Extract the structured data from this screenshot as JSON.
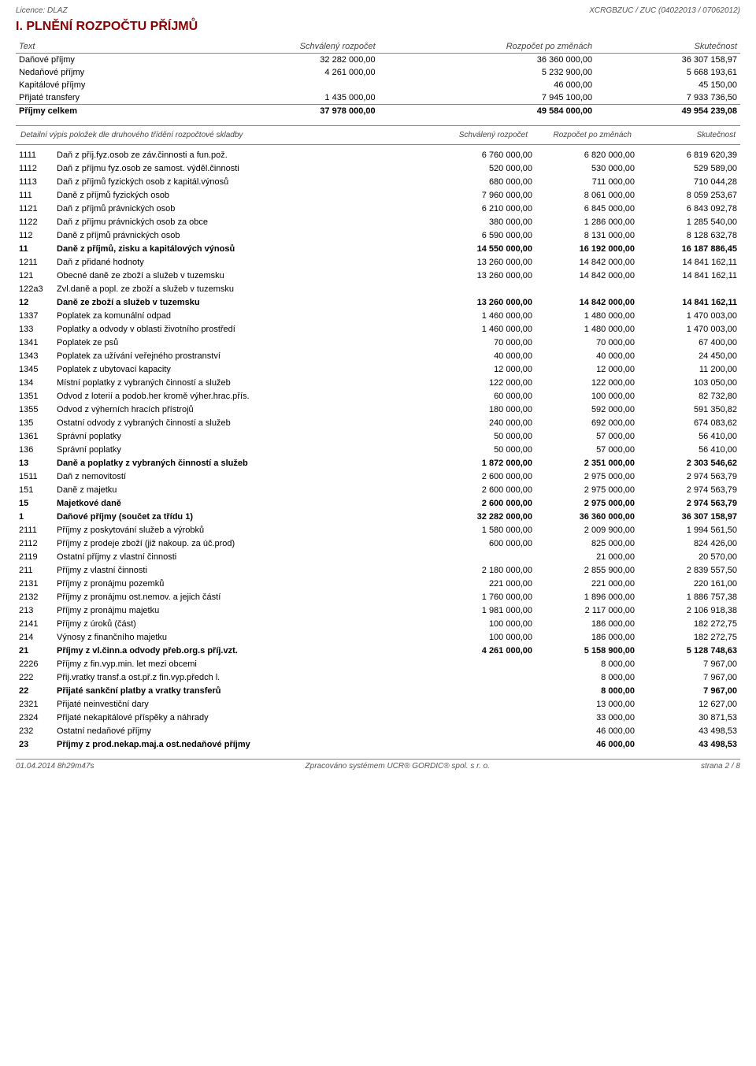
{
  "header": {
    "left": "Licence: DLAZ",
    "right": "XCRGBZUC / ZUC  (04022013 / 07062012)"
  },
  "section_title": "I. PLNĚNÍ ROZPOČTU PŘÍJMŮ",
  "intro": {
    "col_headers": [
      "Text",
      "Schválený rozpočet",
      "Rozpočet po změnách",
      "Skutečnost"
    ],
    "rows": [
      {
        "label": "Daňové příjmy",
        "c1": "32 282 000,00",
        "c2": "36 360 000,00",
        "c3": "36 307 158,97",
        "bold": false
      },
      {
        "label": "Nedaňové příjmy",
        "c1": "4 261 000,00",
        "c2": "5 232 900,00",
        "c3": "5 668 193,61",
        "bold": false
      },
      {
        "label": "Kapitálové příjmy",
        "c1": "",
        "c2": "46 000,00",
        "c3": "45 150,00",
        "bold": false
      },
      {
        "label": "Přijaté transfery",
        "c1": "1 435 000,00",
        "c2": "7 945 100,00",
        "c3": "7 933 736,50",
        "bold": false
      },
      {
        "label": "Příjmy celkem",
        "c1": "37 978 000,00",
        "c2": "49 584 000,00",
        "c3": "49 954 239,08",
        "bold": true
      }
    ]
  },
  "detail_header": [
    "Detailní výpis položek dle druhového třídění rozpočtové skladby",
    "Schválený rozpočet",
    "Rozpočet po změnách",
    "Skutečnost"
  ],
  "rows": [
    {
      "code": "1111",
      "label": "Daň z příj.fyz.osob ze záv.činnosti a fun.pož.",
      "c1": "6 760 000,00",
      "c2": "6 820 000,00",
      "c3": "6 819 620,39",
      "bold": false
    },
    {
      "code": "1112",
      "label": "Daň z příjmu fyz.osob ze samost. výděl.činnosti",
      "c1": "520 000,00",
      "c2": "530 000,00",
      "c3": "529 589,00",
      "bold": false
    },
    {
      "code": "1113",
      "label": "Daň z příjmů fyzických osob z kapitál.výnosů",
      "c1": "680 000,00",
      "c2": "711 000,00",
      "c3": "710 044,28",
      "bold": false
    },
    {
      "code": "111",
      "label": "Daně z příjmů fyzických osob",
      "c1": "7 960 000,00",
      "c2": "8 061 000,00",
      "c3": "8 059 253,67",
      "bold": false
    },
    {
      "code": "1121",
      "label": "Daň z příjmů právnických osob",
      "c1": "6 210 000,00",
      "c2": "6 845 000,00",
      "c3": "6 843 092,78",
      "bold": false
    },
    {
      "code": "1122",
      "label": "Daň z příjmu právnických osob za obce",
      "c1": "380 000,00",
      "c2": "1 286 000,00",
      "c3": "1 285 540,00",
      "bold": false
    },
    {
      "code": "112",
      "label": "Daně z příjmů právnických osob",
      "c1": "6 590 000,00",
      "c2": "8 131 000,00",
      "c3": "8 128 632,78",
      "bold": false
    },
    {
      "code": "11",
      "label": "Daně z příjmů, zisku a kapitálových výnosů",
      "c1": "14 550 000,00",
      "c2": "16 192 000,00",
      "c3": "16 187 886,45",
      "bold": true
    },
    {
      "code": "1211",
      "label": "Daň z přidané hodnoty",
      "c1": "13 260 000,00",
      "c2": "14 842 000,00",
      "c3": "14 841 162,11",
      "bold": false
    },
    {
      "code": "121",
      "label": "Obecné daně ze zboží a služeb v tuzemsku",
      "c1": "13 260 000,00",
      "c2": "14 842 000,00",
      "c3": "14 841 162,11",
      "bold": false
    },
    {
      "code": "122a3",
      "label": "Zvl.daně a popl. ze zboží a služeb v tuzemsku",
      "c1": "",
      "c2": "",
      "c3": "",
      "bold": false
    },
    {
      "code": "12",
      "label": "Daně ze zboží a služeb v tuzemsku",
      "c1": "13 260 000,00",
      "c2": "14 842 000,00",
      "c3": "14 841 162,11",
      "bold": true
    },
    {
      "code": "1337",
      "label": "Poplatek za komunální odpad",
      "c1": "1 460 000,00",
      "c2": "1 480 000,00",
      "c3": "1 470 003,00",
      "bold": false
    },
    {
      "code": "133",
      "label": "Poplatky a odvody v oblasti životního prostředí",
      "c1": "1 460 000,00",
      "c2": "1 480 000,00",
      "c3": "1 470 003,00",
      "bold": false
    },
    {
      "code": "1341",
      "label": "Poplatek ze psů",
      "c1": "70 000,00",
      "c2": "70 000,00",
      "c3": "67 400,00",
      "bold": false
    },
    {
      "code": "1343",
      "label": "Poplatek za užívání veřejného prostranství",
      "c1": "40 000,00",
      "c2": "40 000,00",
      "c3": "24 450,00",
      "bold": false
    },
    {
      "code": "1345",
      "label": "Poplatek z ubytovací kapacity",
      "c1": "12 000,00",
      "c2": "12 000,00",
      "c3": "11 200,00",
      "bold": false
    },
    {
      "code": "134",
      "label": "Místní poplatky z vybraných činností a služeb",
      "c1": "122 000,00",
      "c2": "122 000,00",
      "c3": "103 050,00",
      "bold": false
    },
    {
      "code": "1351",
      "label": "Odvod z loterií a podob.her kromě výher.hrac.přís.",
      "c1": "60 000,00",
      "c2": "100 000,00",
      "c3": "82 732,80",
      "bold": false
    },
    {
      "code": "1355",
      "label": "Odvod z výherních hracích přístrojů",
      "c1": "180 000,00",
      "c2": "592 000,00",
      "c3": "591 350,82",
      "bold": false
    },
    {
      "code": "135",
      "label": "Ostatní odvody z vybraných činností a služeb",
      "c1": "240 000,00",
      "c2": "692 000,00",
      "c3": "674 083,62",
      "bold": false
    },
    {
      "code": "1361",
      "label": "Správní poplatky",
      "c1": "50 000,00",
      "c2": "57 000,00",
      "c3": "56 410,00",
      "bold": false
    },
    {
      "code": "136",
      "label": "Správní poplatky",
      "c1": "50 000,00",
      "c2": "57 000,00",
      "c3": "56 410,00",
      "bold": false
    },
    {
      "code": "13",
      "label": "Daně a poplatky z vybraných činností a služeb",
      "c1": "1 872 000,00",
      "c2": "2 351 000,00",
      "c3": "2 303 546,62",
      "bold": true
    },
    {
      "code": "1511",
      "label": "Daň z nemovitostí",
      "c1": "2 600 000,00",
      "c2": "2 975 000,00",
      "c3": "2 974 563,79",
      "bold": false
    },
    {
      "code": "151",
      "label": "Daně z majetku",
      "c1": "2 600 000,00",
      "c2": "2 975 000,00",
      "c3": "2 974 563,79",
      "bold": false
    },
    {
      "code": "15",
      "label": "Majetkové daně",
      "c1": "2 600 000,00",
      "c2": "2 975 000,00",
      "c3": "2 974 563,79",
      "bold": true
    },
    {
      "code": "1",
      "label": "Daňové příjmy (součet za třídu 1)",
      "c1": "32 282 000,00",
      "c2": "36 360 000,00",
      "c3": "36 307 158,97",
      "bold": true
    },
    {
      "code": "2111",
      "label": "Příjmy z poskytování služeb a výrobků",
      "c1": "1 580 000,00",
      "c2": "2 009 900,00",
      "c3": "1 994 561,50",
      "bold": false
    },
    {
      "code": "2112",
      "label": "Příjmy z prodeje zboží (již nakoup. za úč.prod)",
      "c1": "600 000,00",
      "c2": "825 000,00",
      "c3": "824 426,00",
      "bold": false
    },
    {
      "code": "2119",
      "label": "Ostatní příjmy z vlastní činnosti",
      "c1": "",
      "c2": "21 000,00",
      "c3": "20 570,00",
      "bold": false
    },
    {
      "code": "211",
      "label": "Příjmy z vlastní činnosti",
      "c1": "2 180 000,00",
      "c2": "2 855 900,00",
      "c3": "2 839 557,50",
      "bold": false
    },
    {
      "code": "2131",
      "label": "Příjmy z pronájmu pozemků",
      "c1": "221 000,00",
      "c2": "221 000,00",
      "c3": "220 161,00",
      "bold": false
    },
    {
      "code": "2132",
      "label": "Příjmy z pronájmu ost.nemov. a jejich částí",
      "c1": "1 760 000,00",
      "c2": "1 896 000,00",
      "c3": "1 886 757,38",
      "bold": false
    },
    {
      "code": "213",
      "label": "Příjmy z pronájmu majetku",
      "c1": "1 981 000,00",
      "c2": "2 117 000,00",
      "c3": "2 106 918,38",
      "bold": false
    },
    {
      "code": "2141",
      "label": "Příjmy z úroků (část)",
      "c1": "100 000,00",
      "c2": "186 000,00",
      "c3": "182 272,75",
      "bold": false
    },
    {
      "code": "214",
      "label": "Výnosy z finančního majetku",
      "c1": "100 000,00",
      "c2": "186 000,00",
      "c3": "182 272,75",
      "bold": false
    },
    {
      "code": "21",
      "label": "Příjmy z vl.činn.a odvody přeb.org.s příj.vzt.",
      "c1": "4 261 000,00",
      "c2": "5 158 900,00",
      "c3": "5 128 748,63",
      "bold": true
    },
    {
      "code": "2226",
      "label": "Příjmy z fin.vyp.min. let mezi obcemi",
      "c1": "",
      "c2": "8 000,00",
      "c3": "7 967,00",
      "bold": false
    },
    {
      "code": "222",
      "label": "Přij.vratky transf.a ost.př.z fin.vyp.předch l.",
      "c1": "",
      "c2": "8 000,00",
      "c3": "7 967,00",
      "bold": false
    },
    {
      "code": "22",
      "label": "Přijaté sankční platby a vratky transferů",
      "c1": "",
      "c2": "8 000,00",
      "c3": "7 967,00",
      "bold": true
    },
    {
      "code": "2321",
      "label": "Přijaté neinvestiční dary",
      "c1": "",
      "c2": "13 000,00",
      "c3": "12 627,00",
      "bold": false
    },
    {
      "code": "2324",
      "label": "Přijaté nekapitálové příspěky a náhrady",
      "c1": "",
      "c2": "33 000,00",
      "c3": "30 871,53",
      "bold": false
    },
    {
      "code": "232",
      "label": "Ostatní nedaňové příjmy",
      "c1": "",
      "c2": "46 000,00",
      "c3": "43 498,53",
      "bold": false
    },
    {
      "code": "23",
      "label": "Příjmy z prod.nekap.maj.a ost.nedaňové příjmy",
      "c1": "",
      "c2": "46 000,00",
      "c3": "43 498,53",
      "bold": true
    }
  ],
  "footer": {
    "left": "01.04.2014 8h29m47s",
    "center": "Zpracováno systémem  UCR® GORDIC® spol. s  r. o.",
    "right": "strana  2 / 8"
  },
  "colors": {
    "title": "#8b0000",
    "text": "#000000",
    "muted": "#555555",
    "border": "#888888"
  }
}
